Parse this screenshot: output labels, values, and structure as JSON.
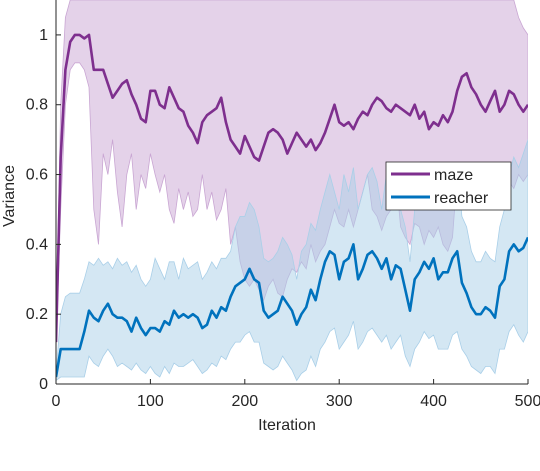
{
  "chart_data": {
    "type": "line",
    "xlabel": "Iteration",
    "ylabel": "Variance",
    "xlim": [
      0,
      500
    ],
    "ylim": [
      0,
      1.1
    ],
    "x_ticks": [
      0,
      100,
      200,
      300,
      400,
      500
    ],
    "x_tick_labels": [
      "0",
      "100",
      "200",
      "300",
      "400",
      "500"
    ],
    "y_ticks": [
      0,
      0.2,
      0.4,
      0.6,
      0.8,
      1
    ],
    "y_tick_labels": [
      "0",
      "0.2",
      "0.4",
      "0.6",
      "0.8",
      "1"
    ],
    "grid": false,
    "legend_position": "right",
    "series": [
      {
        "name": "maze",
        "color": "#7e2f8e",
        "fill_color": "#c9a6d3",
        "x": [
          0,
          5,
          10,
          15,
          20,
          25,
          30,
          35,
          40,
          45,
          50,
          55,
          60,
          65,
          70,
          75,
          80,
          85,
          90,
          95,
          100,
          105,
          110,
          115,
          120,
          125,
          130,
          135,
          140,
          145,
          150,
          155,
          160,
          165,
          170,
          175,
          180,
          185,
          190,
          195,
          200,
          205,
          210,
          215,
          220,
          225,
          230,
          235,
          240,
          245,
          250,
          255,
          260,
          265,
          270,
          275,
          280,
          285,
          290,
          295,
          300,
          305,
          310,
          315,
          320,
          325,
          330,
          335,
          340,
          345,
          350,
          355,
          360,
          365,
          370,
          375,
          380,
          385,
          390,
          395,
          400,
          405,
          410,
          415,
          420,
          425,
          430,
          435,
          440,
          445,
          450,
          455,
          460,
          465,
          470,
          475,
          480,
          485,
          490,
          495,
          500
        ],
        "y": [
          0.12,
          0.65,
          0.9,
          0.98,
          1.0,
          1.0,
          0.99,
          1.0,
          0.9,
          0.9,
          0.9,
          0.86,
          0.82,
          0.84,
          0.86,
          0.87,
          0.83,
          0.8,
          0.76,
          0.75,
          0.84,
          0.84,
          0.8,
          0.79,
          0.85,
          0.82,
          0.79,
          0.78,
          0.74,
          0.72,
          0.69,
          0.75,
          0.77,
          0.78,
          0.79,
          0.82,
          0.75,
          0.7,
          0.68,
          0.66,
          0.71,
          0.68,
          0.65,
          0.64,
          0.68,
          0.72,
          0.73,
          0.72,
          0.7,
          0.66,
          0.69,
          0.72,
          0.7,
          0.68,
          0.7,
          0.67,
          0.69,
          0.72,
          0.76,
          0.8,
          0.75,
          0.74,
          0.75,
          0.73,
          0.76,
          0.78,
          0.77,
          0.8,
          0.82,
          0.81,
          0.79,
          0.78,
          0.8,
          0.79,
          0.78,
          0.77,
          0.8,
          0.76,
          0.78,
          0.73,
          0.75,
          0.74,
          0.77,
          0.75,
          0.78,
          0.84,
          0.88,
          0.89,
          0.85,
          0.83,
          0.8,
          0.78,
          0.81,
          0.84,
          0.78,
          0.8,
          0.84,
          0.83,
          0.8,
          0.78,
          0.8
        ],
        "upper": [
          0.14,
          0.8,
          1.05,
          1.1,
          1.1,
          1.1,
          1.1,
          1.1,
          1.1,
          1.1,
          1.1,
          1.1,
          1.1,
          1.1,
          1.1,
          1.1,
          1.1,
          1.1,
          1.1,
          1.1,
          1.1,
          1.1,
          1.1,
          1.1,
          1.1,
          1.1,
          1.1,
          1.1,
          1.1,
          1.1,
          1.1,
          1.1,
          1.1,
          1.1,
          1.1,
          1.1,
          1.1,
          1.1,
          1.1,
          1.1,
          1.1,
          1.1,
          1.1,
          1.1,
          1.1,
          1.1,
          1.1,
          1.1,
          1.1,
          1.1,
          1.1,
          1.1,
          1.1,
          1.1,
          1.1,
          1.1,
          1.1,
          1.1,
          1.1,
          1.1,
          1.1,
          1.1,
          1.1,
          1.1,
          1.1,
          1.1,
          1.1,
          1.1,
          1.1,
          1.1,
          1.1,
          1.1,
          1.1,
          1.1,
          1.1,
          1.1,
          1.1,
          1.1,
          1.1,
          1.1,
          1.1,
          1.1,
          1.1,
          1.1,
          1.1,
          1.1,
          1.1,
          1.1,
          1.1,
          1.1,
          1.1,
          1.1,
          1.1,
          1.1,
          1.1,
          1.1,
          1.1,
          1.1,
          1.05,
          1.02,
          1.0
        ],
        "lower": [
          0.1,
          0.5,
          0.8,
          0.9,
          0.92,
          0.92,
          0.9,
          0.85,
          0.5,
          0.4,
          0.66,
          0.6,
          0.7,
          0.55,
          0.45,
          0.6,
          0.66,
          0.5,
          0.6,
          0.56,
          0.66,
          0.6,
          0.55,
          0.6,
          0.5,
          0.46,
          0.56,
          0.5,
          0.55,
          0.48,
          0.5,
          0.6,
          0.5,
          0.55,
          0.47,
          0.5,
          0.56,
          0.4,
          0.45,
          0.35,
          0.3,
          0.28,
          0.3,
          0.27,
          0.24,
          0.28,
          0.3,
          0.26,
          0.25,
          0.3,
          0.33,
          0.32,
          0.35,
          0.33,
          0.4,
          0.35,
          0.38,
          0.4,
          0.45,
          0.5,
          0.46,
          0.45,
          0.5,
          0.45,
          0.5,
          0.55,
          0.6,
          0.5,
          0.48,
          0.44,
          0.48,
          0.5,
          0.6,
          0.45,
          0.42,
          0.4,
          0.46,
          0.45,
          0.4,
          0.44,
          0.42,
          0.45,
          0.4,
          0.38,
          0.42,
          0.6,
          0.55,
          0.5,
          0.52,
          0.58,
          0.6,
          0.55,
          0.52,
          0.6,
          0.54,
          0.55,
          0.58,
          0.56,
          0.6,
          0.58,
          0.6
        ]
      },
      {
        "name": "reacher",
        "color": "#0072bd",
        "fill_color": "#a9cfe8",
        "x": [
          0,
          5,
          10,
          15,
          20,
          25,
          30,
          35,
          40,
          45,
          50,
          55,
          60,
          65,
          70,
          75,
          80,
          85,
          90,
          95,
          100,
          105,
          110,
          115,
          120,
          125,
          130,
          135,
          140,
          145,
          150,
          155,
          160,
          165,
          170,
          175,
          180,
          185,
          190,
          195,
          200,
          205,
          210,
          215,
          220,
          225,
          230,
          235,
          240,
          245,
          250,
          255,
          260,
          265,
          270,
          275,
          280,
          285,
          290,
          295,
          300,
          305,
          310,
          315,
          320,
          325,
          330,
          335,
          340,
          345,
          350,
          355,
          360,
          365,
          370,
          375,
          380,
          385,
          390,
          395,
          400,
          405,
          410,
          415,
          420,
          425,
          430,
          435,
          440,
          445,
          450,
          455,
          460,
          465,
          470,
          475,
          480,
          485,
          490,
          495,
          500
        ],
        "y": [
          0.02,
          0.1,
          0.1,
          0.1,
          0.1,
          0.1,
          0.15,
          0.21,
          0.19,
          0.18,
          0.21,
          0.23,
          0.2,
          0.19,
          0.19,
          0.18,
          0.15,
          0.19,
          0.16,
          0.14,
          0.16,
          0.16,
          0.15,
          0.18,
          0.17,
          0.21,
          0.19,
          0.2,
          0.19,
          0.2,
          0.19,
          0.16,
          0.17,
          0.21,
          0.19,
          0.22,
          0.21,
          0.25,
          0.28,
          0.29,
          0.3,
          0.33,
          0.3,
          0.29,
          0.21,
          0.19,
          0.2,
          0.21,
          0.25,
          0.23,
          0.21,
          0.17,
          0.2,
          0.22,
          0.27,
          0.24,
          0.3,
          0.35,
          0.38,
          0.37,
          0.3,
          0.35,
          0.36,
          0.4,
          0.3,
          0.33,
          0.37,
          0.38,
          0.36,
          0.33,
          0.36,
          0.3,
          0.34,
          0.33,
          0.27,
          0.21,
          0.3,
          0.32,
          0.35,
          0.33,
          0.36,
          0.3,
          0.32,
          0.32,
          0.36,
          0.38,
          0.29,
          0.26,
          0.22,
          0.2,
          0.2,
          0.22,
          0.21,
          0.19,
          0.28,
          0.3,
          0.38,
          0.4,
          0.38,
          0.39,
          0.42
        ],
        "upper": [
          0.03,
          0.2,
          0.25,
          0.26,
          0.26,
          0.26,
          0.3,
          0.35,
          0.34,
          0.36,
          0.34,
          0.35,
          0.33,
          0.36,
          0.34,
          0.35,
          0.32,
          0.34,
          0.3,
          0.28,
          0.3,
          0.36,
          0.33,
          0.3,
          0.35,
          0.35,
          0.3,
          0.36,
          0.33,
          0.34,
          0.35,
          0.3,
          0.32,
          0.35,
          0.33,
          0.36,
          0.36,
          0.38,
          0.45,
          0.48,
          0.48,
          0.52,
          0.5,
          0.45,
          0.36,
          0.35,
          0.36,
          0.38,
          0.42,
          0.4,
          0.37,
          0.3,
          0.38,
          0.4,
          0.46,
          0.44,
          0.5,
          0.55,
          0.6,
          0.55,
          0.5,
          0.6,
          0.55,
          0.62,
          0.5,
          0.55,
          0.6,
          0.62,
          0.58,
          0.5,
          0.6,
          0.5,
          0.55,
          0.5,
          0.45,
          0.35,
          0.5,
          0.52,
          0.55,
          0.52,
          0.6,
          0.5,
          0.55,
          0.55,
          0.6,
          0.62,
          0.48,
          0.45,
          0.38,
          0.35,
          0.35,
          0.38,
          0.36,
          0.35,
          0.45,
          0.5,
          0.6,
          0.65,
          0.62,
          0.66,
          0.7
        ],
        "lower": [
          0.01,
          0.02,
          0.02,
          0.02,
          0.02,
          0.02,
          0.02,
          0.08,
          0.06,
          0.05,
          0.08,
          0.1,
          0.08,
          0.05,
          0.06,
          0.05,
          0.04,
          0.06,
          0.04,
          0.03,
          0.05,
          0.03,
          0.02,
          0.05,
          0.03,
          0.06,
          0.05,
          0.05,
          0.06,
          0.07,
          0.05,
          0.03,
          0.04,
          0.06,
          0.05,
          0.08,
          0.07,
          0.1,
          0.12,
          0.12,
          0.14,
          0.15,
          0.12,
          0.12,
          0.06,
          0.05,
          0.04,
          0.05,
          0.08,
          0.06,
          0.04,
          0.01,
          0.03,
          0.04,
          0.08,
          0.05,
          0.1,
          0.12,
          0.15,
          0.16,
          0.1,
          0.12,
          0.14,
          0.18,
          0.1,
          0.12,
          0.15,
          0.16,
          0.14,
          0.12,
          0.14,
          0.1,
          0.12,
          0.14,
          0.08,
          0.05,
          0.1,
          0.12,
          0.15,
          0.13,
          0.14,
          0.1,
          0.1,
          0.1,
          0.14,
          0.15,
          0.1,
          0.08,
          0.05,
          0.04,
          0.03,
          0.05,
          0.05,
          0.03,
          0.1,
          0.1,
          0.15,
          0.17,
          0.14,
          0.12,
          0.15
        ]
      }
    ]
  }
}
